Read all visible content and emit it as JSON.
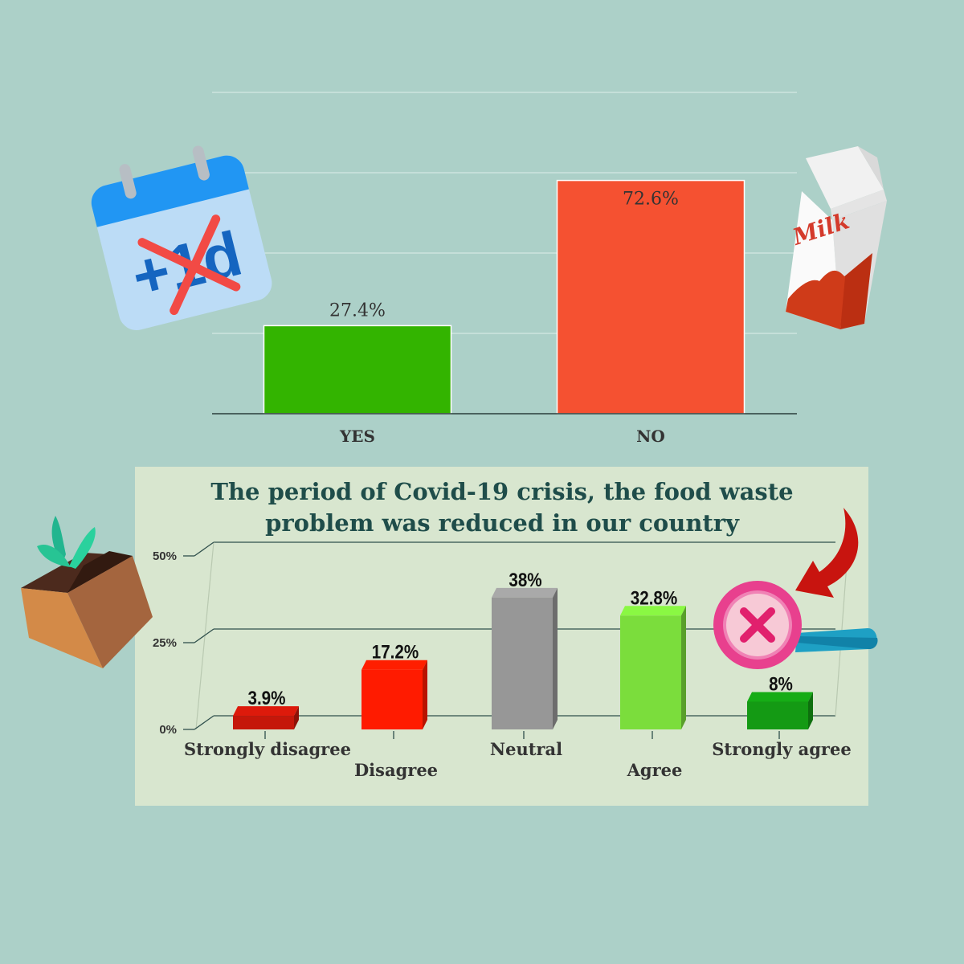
{
  "chart_data": [
    {
      "type": "bar",
      "title": "",
      "categories": [
        "YES",
        "NO"
      ],
      "values": [
        27.4,
        72.6
      ],
      "value_labels": [
        "27.4%",
        "72.6%"
      ],
      "colors": [
        "#33b400",
        "#f55131"
      ],
      "ylim": [
        0,
        100
      ],
      "grid": true,
      "xlabel": "",
      "ylabel": ""
    },
    {
      "type": "bar",
      "title_lines": [
        "The period of Covid-19 crisis, the food waste",
        "problem was reduced in our country"
      ],
      "categories": [
        "Strongly disagree",
        "Disagree",
        "Neutral",
        "Agree",
        "Strongly agree"
      ],
      "values": [
        3.9,
        17.2,
        38,
        32.8,
        8
      ],
      "value_labels": [
        "3.9%",
        "17.2%",
        "38%",
        "32.8%",
        "8%"
      ],
      "colors": [
        "#c5170a",
        "#ff1b00",
        "#979797",
        "#7bdd3c",
        "#149a14"
      ],
      "yticks": [
        "0%",
        "25%",
        "50%"
      ],
      "ylim": [
        0,
        50
      ],
      "grid": true,
      "xlabel": "",
      "ylabel": ""
    }
  ],
  "decorations": {
    "calendar_icon": "calendar-plus-one-day-crossed",
    "milk_icon": "milk-carton",
    "plant_box_icon": "plant-sprout-box",
    "magnifier_icon": "magnifier-with-x",
    "arrow_icon": "curved-red-arrow",
    "milk_text": "Milk",
    "calendar_text": "+1d"
  }
}
